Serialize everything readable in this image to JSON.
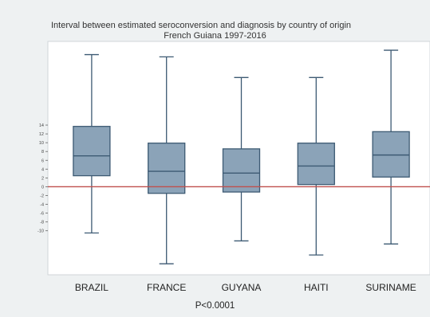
{
  "chart_data": {
    "type": "box",
    "title": "Interval between estimated seroconversion and diagnosis by country of origin",
    "subtitle": "French Guiana 1997-2016",
    "xlabel": "",
    "ylabel": "",
    "footnote": "P<0.0001",
    "categories": [
      "BRAZIL",
      "FRANCE",
      "GUYANA",
      "HAITI",
      "SURINAME"
    ],
    "boxes": [
      {
        "category": "BRAZIL",
        "whisker_low": -10.5,
        "q1": 2.5,
        "median": 7.0,
        "q3": 13.7,
        "whisker_high": 30.0
      },
      {
        "category": "FRANCE",
        "whisker_low": -17.5,
        "q1": -1.5,
        "median": 3.5,
        "q3": 9.9,
        "whisker_high": 29.5
      },
      {
        "category": "GUYANA",
        "whisker_low": -12.3,
        "q1": -1.2,
        "median": 3.1,
        "q3": 8.6,
        "whisker_high": 24.8
      },
      {
        "category": "HAITI",
        "whisker_low": -15.5,
        "q1": 0.5,
        "median": 4.7,
        "q3": 9.9,
        "whisker_high": 24.8
      },
      {
        "category": "SURINAME",
        "whisker_low": -13.0,
        "q1": 2.2,
        "median": 7.2,
        "q3": 12.5,
        "whisker_high": 31.0
      }
    ],
    "yticks": [
      14,
      12,
      10,
      8,
      6,
      4,
      2,
      0,
      -2,
      -4,
      -6,
      -8,
      -10
    ],
    "ylim": [
      -20,
      33
    ],
    "reference_line": {
      "y": 0,
      "color": "#c0504d"
    },
    "colors": {
      "box_fill": "#8ba3b8",
      "box_stroke": "#3d5a73",
      "plot_bg": "#ffffff",
      "page_bg": "#eef1f2"
    },
    "grid": false,
    "legend": "none"
  }
}
